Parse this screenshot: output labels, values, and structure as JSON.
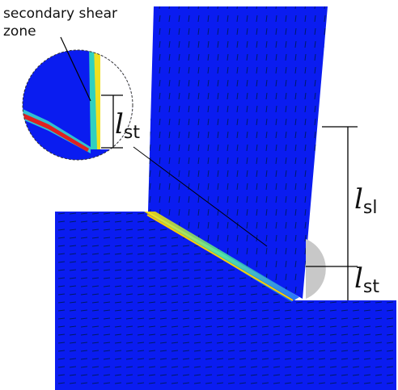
{
  "annotation": {
    "lines": [
      "secondary shear",
      "zone"
    ]
  },
  "dimensions": [
    {
      "symbol": "l",
      "subscript": "st"
    },
    {
      "symbol": "l",
      "subscript": "sl"
    },
    {
      "symbol": "l",
      "subscript": "st"
    }
  ]
}
